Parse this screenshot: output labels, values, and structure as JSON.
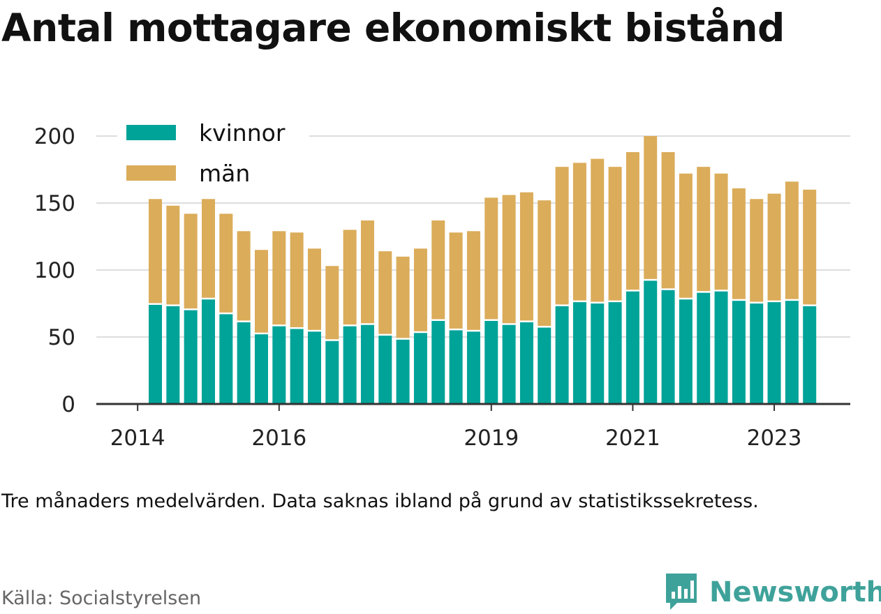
{
  "title": "Antal mottagare ekonomiskt bistånd",
  "note": "Tre månaders medelvärden. Data saknas ibland på grund av statistikssekretess.",
  "source": "Källa: Socialstyrelsen",
  "brand": "Newsworthy",
  "colors": {
    "kvinnor": "#00a398",
    "man": "#dbac5a",
    "grid": "#dddddd",
    "axis": "#333333",
    "brand": "#3fa29a"
  },
  "chart_data": {
    "type": "bar",
    "stacked": true,
    "x_ticks": [
      "2014",
      "2016",
      "2019",
      "2021",
      "2023"
    ],
    "y_ticks": [
      "0",
      "50",
      "100",
      "150",
      "200"
    ],
    "ylim": [
      0,
      200
    ],
    "legend_position": "top-left",
    "grid": true,
    "series": [
      {
        "name": "kvinnor",
        "values": [
          74,
          73,
          70,
          78,
          67,
          61,
          52,
          58,
          56,
          54,
          47,
          58,
          59,
          51,
          48,
          53,
          62,
          55,
          54,
          62,
          59,
          61,
          57,
          73,
          76,
          75,
          76,
          84,
          92,
          85,
          78,
          83,
          84,
          77,
          75,
          76,
          77,
          73
        ]
      },
      {
        "name": "män",
        "values": [
          79,
          75,
          72,
          75,
          75,
          68,
          63,
          71,
          72,
          62,
          56,
          72,
          78,
          63,
          62,
          63,
          75,
          73,
          75,
          92,
          97,
          97,
          95,
          104,
          104,
          108,
          101,
          104,
          108,
          103,
          94,
          94,
          88,
          84,
          78,
          81,
          89,
          87
        ]
      }
    ]
  }
}
